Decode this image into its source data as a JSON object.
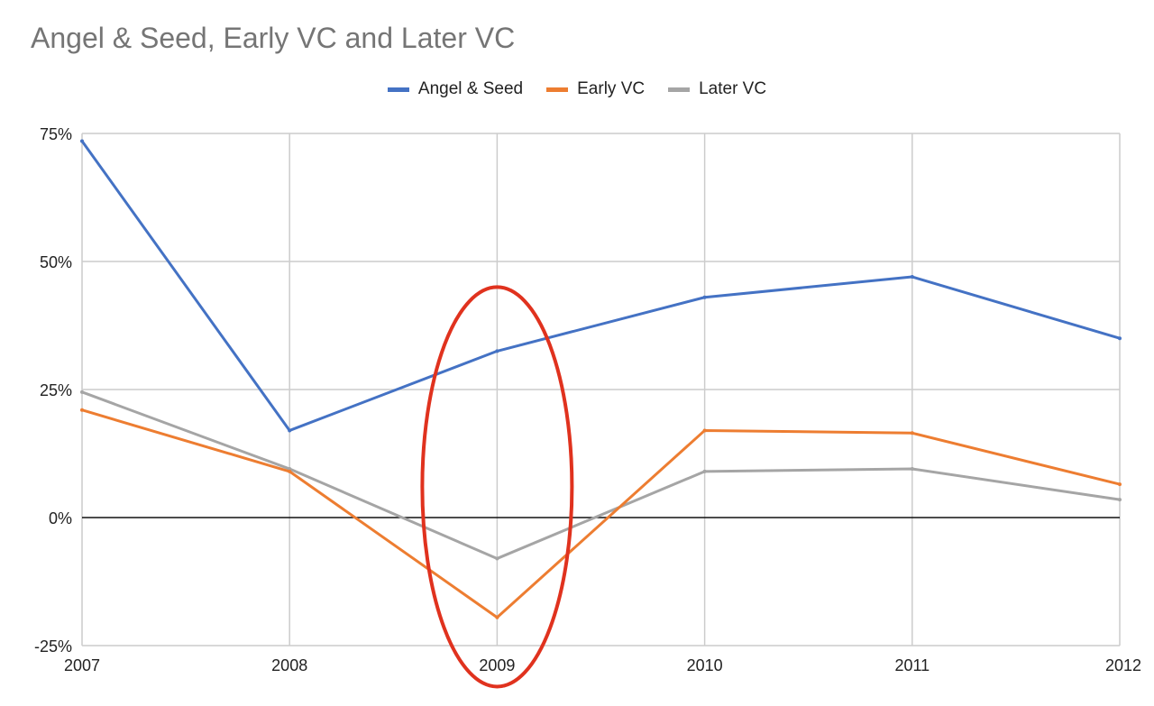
{
  "chart_data": {
    "type": "line",
    "title": "Angel & Seed, Early VC and Later VC",
    "xlabel": "",
    "ylabel": "",
    "categories": [
      "2007",
      "2008",
      "2009",
      "2010",
      "2011",
      "2012"
    ],
    "ylim": [
      -25,
      75
    ],
    "yticks": [
      -25,
      0,
      25,
      50,
      75
    ],
    "ytick_labels": [
      "-25%",
      "0%",
      "25%",
      "50%",
      "75%"
    ],
    "grid": true,
    "legend_position": "top-center",
    "series": [
      {
        "name": "Angel & Seed",
        "color": "#4472C4",
        "values": [
          73.5,
          17.0,
          32.5,
          43.0,
          47.0,
          35.0
        ]
      },
      {
        "name": "Early VC",
        "color": "#ED7D31",
        "values": [
          21.0,
          9.0,
          -19.5,
          17.0,
          16.5,
          6.5
        ]
      },
      {
        "name": "Later VC",
        "color": "#A5A5A5",
        "values": [
          24.5,
          9.5,
          -8.0,
          9.0,
          9.5,
          3.5
        ]
      }
    ],
    "annotations": [
      {
        "type": "ellipse",
        "color": "#E0321E",
        "around_category": "2009",
        "y_range": [
          -33,
          45
        ]
      }
    ]
  }
}
